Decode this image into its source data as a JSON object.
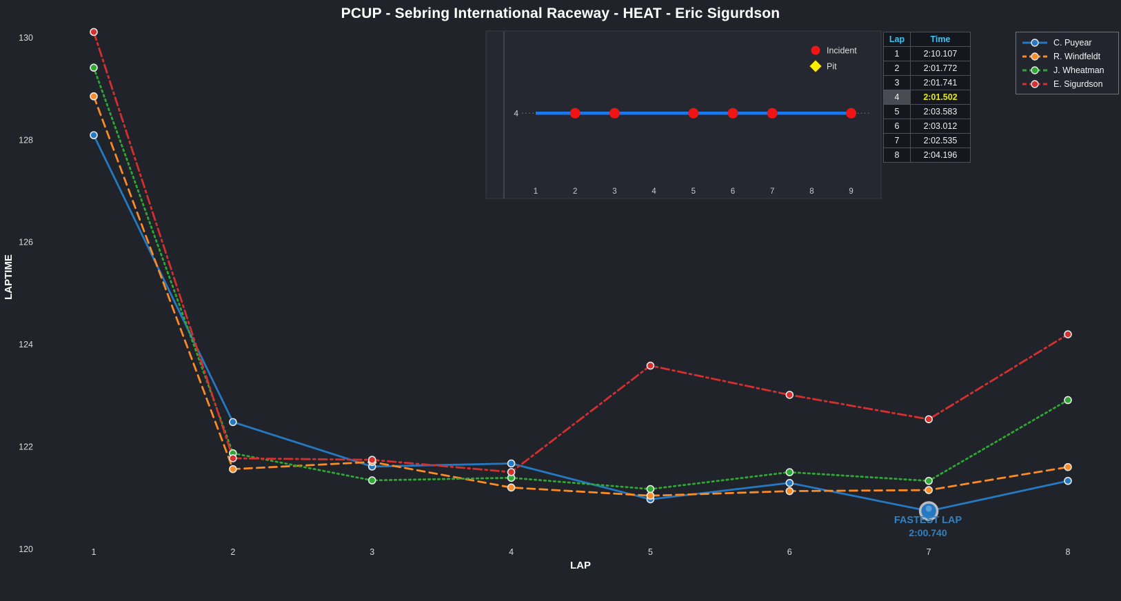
{
  "title": "PCUP - Sebring International Raceway - HEAT - Eric Sigurdson",
  "colors": {
    "background": "#20232a",
    "inset_panel": "#252830",
    "blue": "#2579c2",
    "orange": "#fb8b24",
    "green": "#2fa833",
    "red": "#d62f2f",
    "incident_red": "#f01515",
    "pit_yellow": "#ffef00",
    "inset_line_blue": "#1a78f0",
    "table_header_cyan": "#38c6f4",
    "highlight_yellow": "#e8ea00",
    "fastest_blue": "#2f82c4",
    "tick_text": "#d9dadc"
  },
  "chart_data": {
    "type": "line",
    "title": "PCUP - Sebring International Raceway - HEAT - Eric Sigurdson",
    "xlabel": "LAP",
    "ylabel": "LAPTIME",
    "x": [
      1,
      2,
      3,
      4,
      5,
      6,
      7,
      8
    ],
    "xticks": [
      "1",
      "2",
      "3",
      "4",
      "5",
      "6",
      "7",
      "8"
    ],
    "yticks": [
      130,
      128,
      126,
      124,
      122,
      120
    ],
    "ylim": [
      119.55,
      130.45
    ],
    "grid": false,
    "legend_position": "top-right",
    "series": [
      {
        "name": "C. Puyear",
        "linestyle": "solid",
        "values": [
          128.09,
          122.48,
          121.61,
          121.67,
          120.97,
          121.29,
          120.74,
          121.33
        ]
      },
      {
        "name": "R. Windfeldt",
        "linestyle": "dashed",
        "values": [
          128.85,
          121.56,
          121.7,
          121.2,
          121.04,
          121.13,
          121.15,
          121.6
        ]
      },
      {
        "name": "J. Wheatman",
        "linestyle": "dotted",
        "values": [
          129.41,
          121.87,
          121.34,
          121.39,
          121.17,
          121.5,
          121.33,
          122.91
        ]
      },
      {
        "name": "E. Sigurdson",
        "linestyle": "dashdot",
        "values": [
          130.107,
          121.772,
          121.741,
          121.502,
          123.583,
          123.012,
          122.535,
          124.196
        ]
      }
    ],
    "annotation": {
      "line1": "FASTEST LAP",
      "line2": "2:00.740",
      "series": "C. Puyear",
      "lap": 7,
      "value": 120.74
    }
  },
  "inset": {
    "row_label": "4",
    "xticks": [
      "1",
      "2",
      "3",
      "4",
      "5",
      "6",
      "7",
      "8",
      "9"
    ],
    "line_from": 1,
    "line_to": 9,
    "incident_laps": [
      2,
      3,
      5,
      6,
      7,
      9
    ],
    "legend": [
      {
        "label": "Incident",
        "marker": "circle"
      },
      {
        "label": "Pit",
        "marker": "diamond"
      }
    ]
  },
  "lap_table": {
    "headers": [
      "Lap",
      "Time"
    ],
    "rows": [
      {
        "lap": "1",
        "time": "2:10.107",
        "highlight": false
      },
      {
        "lap": "2",
        "time": "2:01.772",
        "highlight": false
      },
      {
        "lap": "3",
        "time": "2:01.741",
        "highlight": false
      },
      {
        "lap": "4",
        "time": "2:01.502",
        "highlight": true
      },
      {
        "lap": "5",
        "time": "2:03.583",
        "highlight": false
      },
      {
        "lap": "6",
        "time": "2:03.012",
        "highlight": false
      },
      {
        "lap": "7",
        "time": "2:02.535",
        "highlight": false
      },
      {
        "lap": "8",
        "time": "2:04.196",
        "highlight": false
      }
    ]
  }
}
